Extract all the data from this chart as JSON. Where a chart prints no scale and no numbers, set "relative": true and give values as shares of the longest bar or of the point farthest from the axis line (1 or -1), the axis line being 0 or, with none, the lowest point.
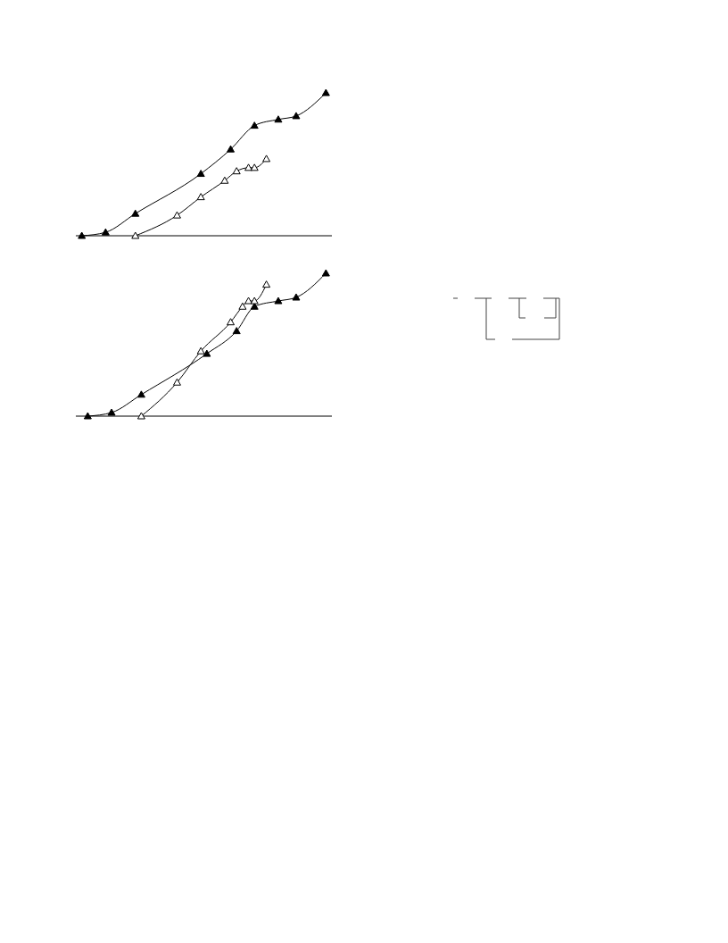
{
  "chart_data": [
    {
      "type": "line",
      "relative": true,
      "marker": "triangle",
      "line_style": "solid",
      "grid": false,
      "legend": false,
      "categories": [
        null,
        null,
        null,
        null,
        null,
        null,
        null,
        null,
        null,
        null,
        null,
        null,
        null,
        null,
        null,
        null,
        null,
        null,
        null,
        null,
        null,
        null,
        null,
        null,
        null,
        null,
        null,
        null,
        null,
        null,
        null,
        null,
        null,
        null,
        null,
        null,
        null,
        null,
        null,
        null,
        null,
        null,
        null,
        null
      ],
      "series": [
        {
          "color": "#000000",
          "values": [
            null,
            0,
            null,
            null,
            null,
            0.024,
            null,
            null,
            null,
            null,
            0.155,
            null,
            null,
            null,
            null,
            null,
            null,
            null,
            null,
            null,
            null,
            0.434,
            null,
            null,
            null,
            null,
            0.605,
            null,
            null,
            null,
            0.771,
            null,
            null,
            null,
            0.814,
            null,
            null,
            0.838,
            null,
            null,
            null,
            null,
            1,
            null
          ]
        },
        {
          "color": "#000000",
          "values": [
            null,
            null,
            null,
            null,
            null,
            null,
            null,
            null,
            null,
            null,
            0,
            null,
            null,
            null,
            null,
            null,
            null,
            0.143,
            null,
            null,
            null,
            0.271,
            null,
            null,
            null,
            0.386,
            null,
            0.452,
            null,
            0.476,
            0.476,
            null,
            0.538,
            null,
            null,
            null,
            null,
            null,
            null,
            null,
            null,
            null,
            null,
            null
          ]
        }
      ]
    },
    {
      "type": "line",
      "relative": true,
      "marker": "triangle",
      "line_style": "solid",
      "grid": false,
      "legend": false,
      "categories": [
        null,
        null,
        null,
        null,
        null,
        null,
        null,
        null,
        null,
        null,
        null,
        null,
        null,
        null,
        null,
        null,
        null,
        null,
        null,
        null,
        null,
        null,
        null,
        null,
        null,
        null,
        null,
        null,
        null,
        null,
        null,
        null,
        null,
        null,
        null,
        null,
        null,
        null,
        null,
        null,
        null,
        null,
        null,
        null
      ],
      "series": [
        {
          "color": "#000000",
          "values": [
            null,
            null,
            0,
            null,
            null,
            null,
            0.025,
            null,
            null,
            null,
            null,
            0.151,
            null,
            null,
            null,
            null,
            null,
            null,
            null,
            null,
            null,
            null,
            0.437,
            null,
            null,
            null,
            null,
            0.596,
            null,
            null,
            0.767,
            null,
            null,
            null,
            0.806,
            null,
            null,
            0.831,
            null,
            null,
            null,
            null,
            1,
            null
          ]
        },
        {
          "color": "#000000",
          "values": [
            null,
            null,
            null,
            null,
            null,
            null,
            null,
            null,
            null,
            null,
            null,
            0,
            null,
            null,
            null,
            null,
            null,
            0.236,
            null,
            null,
            null,
            0.455,
            null,
            null,
            null,
            null,
            0.658,
            null,
            0.767,
            0.806,
            0.806,
            null,
            0.921,
            null,
            null,
            null,
            null,
            null,
            null,
            null,
            null,
            null,
            null,
            null
          ]
        }
      ]
    }
  ]
}
